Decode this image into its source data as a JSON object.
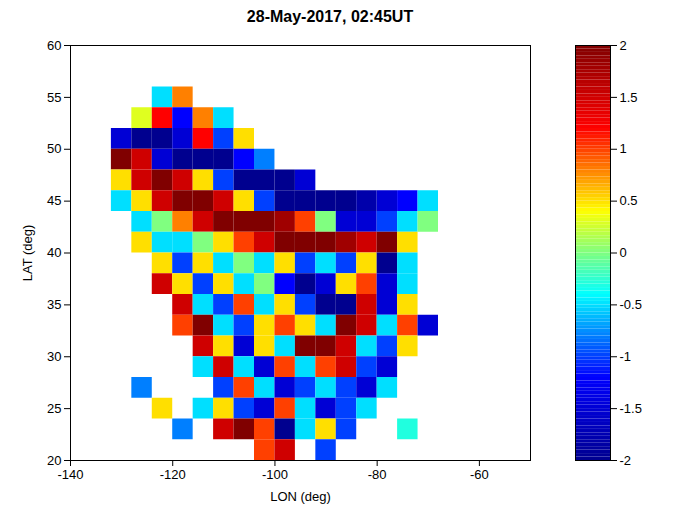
{
  "chart_data": {
    "type": "heatmap",
    "title": "28-May-2017, 02:45UT",
    "x_label": "LON (deg)",
    "y_label": "LAT (deg)",
    "xlim": [
      -140,
      -50
    ],
    "ylim": [
      20,
      60
    ],
    "xticks": [
      -140,
      -120,
      -100,
      -80,
      -60
    ],
    "yticks": [
      20,
      25,
      30,
      35,
      40,
      45,
      50,
      55,
      60
    ],
    "x": [
      -134,
      -130,
      -126,
      -122,
      -118,
      -114,
      -110,
      -106,
      -102,
      -98,
      -94,
      -90,
      -86,
      -82,
      -78,
      -74,
      -70,
      -66
    ],
    "y": [
      59,
      57,
      55,
      53,
      51,
      49,
      47,
      45,
      43,
      41,
      39,
      37,
      35,
      33,
      31,
      29,
      27,
      25,
      23,
      21
    ],
    "values": [
      [
        null,
        null,
        null,
        null,
        null,
        null,
        null,
        null,
        null,
        null,
        null,
        null,
        null,
        null,
        null,
        null,
        null,
        null
      ],
      [
        null,
        null,
        null,
        null,
        null,
        null,
        null,
        null,
        null,
        null,
        null,
        null,
        null,
        null,
        null,
        null,
        null,
        null
      ],
      [
        null,
        null,
        null,
        -0.5,
        0.8,
        null,
        null,
        null,
        null,
        null,
        null,
        null,
        null,
        null,
        null,
        null,
        null,
        null
      ],
      [
        null,
        null,
        0.3,
        1.2,
        -1.2,
        0.8,
        -0.5,
        null,
        null,
        null,
        null,
        null,
        null,
        null,
        null,
        null,
        null,
        null
      ],
      [
        null,
        -1.5,
        -2,
        -2,
        -1.5,
        1.2,
        -1,
        0.5,
        null,
        null,
        null,
        null,
        null,
        null,
        null,
        null,
        null,
        null
      ],
      [
        null,
        2,
        1.5,
        -1.5,
        -2,
        -2,
        -2,
        -1.2,
        -0.8,
        null,
        null,
        null,
        null,
        null,
        null,
        null,
        null,
        null
      ],
      [
        null,
        0.5,
        1.5,
        2,
        1.5,
        0.5,
        -1,
        -2,
        -2,
        -2,
        -1.5,
        null,
        null,
        null,
        null,
        null,
        null,
        null
      ],
      [
        null,
        -0.5,
        0.5,
        1.5,
        2,
        2,
        1.5,
        0.5,
        -1,
        -2,
        -2,
        -2,
        -2,
        -1.8,
        -1.5,
        -1.2,
        -0.5,
        null
      ],
      [
        null,
        null,
        -0.5,
        0,
        0.8,
        1.5,
        2,
        2,
        2,
        1.8,
        1,
        0,
        -1.5,
        -1.5,
        -1,
        -0.5,
        0,
        null
      ],
      [
        null,
        null,
        0.5,
        -0.5,
        -0.5,
        0,
        0.5,
        1,
        1.5,
        2,
        2,
        2,
        1.8,
        1.5,
        2,
        0.5,
        null,
        null
      ],
      [
        null,
        null,
        null,
        0.5,
        -1,
        0.5,
        -0.5,
        0,
        -0.5,
        0.5,
        -1,
        -0.5,
        -1,
        0.5,
        -2,
        -0.5,
        null,
        null
      ],
      [
        null,
        null,
        null,
        1.5,
        0.5,
        -1,
        0.5,
        -0.5,
        0,
        -1.2,
        -2,
        -1.5,
        0.5,
        1,
        -1.5,
        -0.5,
        null,
        null
      ],
      [
        null,
        null,
        null,
        null,
        1.5,
        -0.5,
        -1,
        1,
        -0.5,
        0.5,
        -1,
        -2,
        -2,
        1.5,
        -1.5,
        0.5,
        null,
        null
      ],
      [
        null,
        null,
        null,
        null,
        1,
        2,
        -0.5,
        -1,
        0.5,
        1,
        0.5,
        -0.5,
        2,
        1.5,
        -0.5,
        1,
        -1.5,
        null
      ],
      [
        null,
        null,
        null,
        null,
        null,
        1.5,
        0.5,
        -1.5,
        0.5,
        -0.5,
        2,
        2,
        1.5,
        -0.5,
        -1,
        0.5,
        null,
        null
      ],
      [
        null,
        null,
        null,
        null,
        null,
        -0.5,
        1.5,
        -0.5,
        -1.5,
        1,
        -0.5,
        1,
        1.5,
        -1,
        -1.5,
        null,
        null,
        null
      ],
      [
        null,
        null,
        -0.8,
        null,
        null,
        null,
        -1,
        1,
        -0.5,
        -1.5,
        -1,
        -0.5,
        -1,
        -1.5,
        -0.5,
        null,
        null,
        null
      ],
      [
        null,
        null,
        null,
        0.5,
        null,
        -0.5,
        0.5,
        -1,
        -1.5,
        1,
        -0.5,
        -1.5,
        -1,
        -0.5,
        null,
        null,
        null,
        null
      ],
      [
        null,
        null,
        null,
        null,
        -0.8,
        null,
        1.5,
        2,
        1,
        -2,
        -0.5,
        0.5,
        -1,
        null,
        null,
        -0.3,
        null,
        null
      ],
      [
        null,
        null,
        null,
        null,
        null,
        null,
        null,
        null,
        1,
        1.5,
        null,
        -1,
        null,
        null,
        null,
        null,
        null,
        null
      ]
    ],
    "colorbar_range": [
      -2,
      2
    ],
    "colorbar_ticks": [
      -2,
      -1.5,
      -1,
      -0.5,
      0,
      0.5,
      1,
      1.5,
      2
    ]
  }
}
